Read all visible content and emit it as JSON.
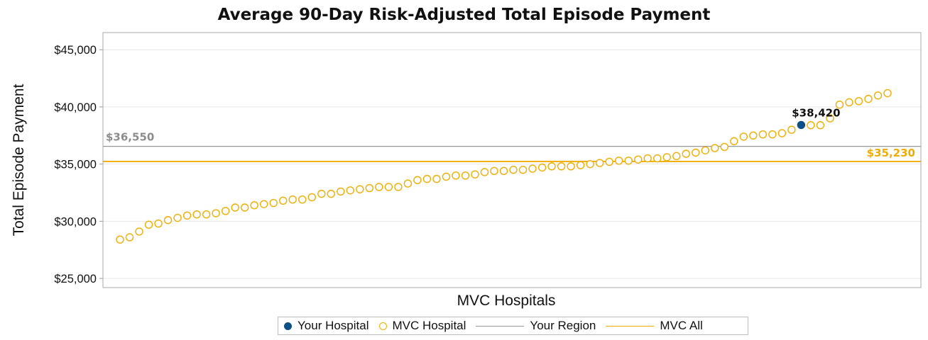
{
  "chart_data": {
    "type": "scatter",
    "title": "Average 90-Day Risk-Adjusted Total Episode Payment",
    "xlabel": "MVC Hospitals",
    "ylabel": "Total Episode Payment",
    "ylim": [
      24200,
      46500
    ],
    "yticks": [
      25000,
      30000,
      35000,
      40000,
      45000
    ],
    "ytick_labels": [
      "$25,000",
      "$30,000",
      "$35,000",
      "$40,000",
      "$45,000"
    ],
    "grid": true,
    "legend_position": "bottom",
    "series": [
      {
        "name": "MVC Hospital",
        "marker": "open-circle",
        "color": "#f0ad00",
        "values": [
          28400,
          28600,
          29100,
          29700,
          29800,
          30100,
          30300,
          30500,
          30600,
          30600,
          30700,
          30900,
          31200,
          31200,
          31400,
          31500,
          31600,
          31800,
          31900,
          31900,
          32100,
          32400,
          32400,
          32600,
          32700,
          32800,
          32900,
          33000,
          33000,
          33000,
          33300,
          33600,
          33700,
          33700,
          33900,
          34000,
          34000,
          34100,
          34300,
          34400,
          34400,
          34500,
          34500,
          34600,
          34700,
          34800,
          34800,
          34800,
          34900,
          35000,
          35100,
          35200,
          35300,
          35300,
          35400,
          35500,
          35500,
          35600,
          35700,
          35900,
          36000,
          36200,
          36400,
          36500,
          37000,
          37400,
          37500,
          37600,
          37600,
          37700,
          38000,
          38400,
          38400,
          39000,
          40200,
          40400,
          40500,
          40700,
          41000,
          41200
        ]
      },
      {
        "name": "Your Hospital",
        "marker": "filled-circle",
        "color": "#0d4f86",
        "index": 71,
        "value": 38420,
        "label": "$38,420"
      }
    ],
    "reference_lines": [
      {
        "name": "Your Region",
        "value": 36550,
        "label": "$36,550",
        "color": "#999999",
        "label_color": "#8c8c8c"
      },
      {
        "name": "MVC All",
        "value": 35230,
        "label": "$35,230",
        "color": "#f0ad00",
        "label_color": "#f0ad00"
      }
    ]
  },
  "legend": {
    "your_hospital": "Your Hospital",
    "mvc_hospital": "MVC Hospital",
    "your_region": "Your Region",
    "mvc_all": "MVC All"
  },
  "colors": {
    "mvc_hospital": "#f0ad00",
    "your_hospital": "#0d4f86",
    "your_region": "#999999",
    "mvc_all": "#f0ad00"
  }
}
